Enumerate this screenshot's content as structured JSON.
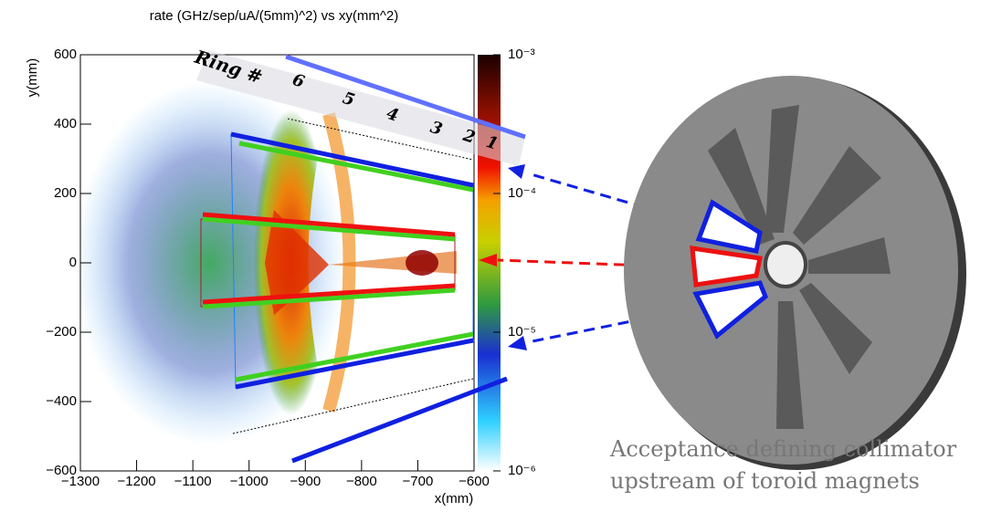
{
  "chart_data": {
    "type": "heatmap",
    "title": "rate (GHz/sep/uA/(5mm)^2) vs xy(mm^2)",
    "x_label": "x(mm)",
    "y_label": "y(mm)",
    "xlim": [
      -1300,
      -600
    ],
    "xticks": [
      {
        "value": -1300,
        "label": "−1300"
      },
      {
        "value": -1200,
        "label": "−1200"
      },
      {
        "value": -1100,
        "label": "−1100"
      },
      {
        "value": -1000,
        "label": "−1000"
      },
      {
        "value": -900,
        "label": "−900"
      },
      {
        "value": -800,
        "label": "−800"
      },
      {
        "value": -700,
        "label": "−700"
      },
      {
        "value": -600,
        "label": "−600"
      }
    ],
    "ylim": [
      -600,
      600
    ],
    "yticks": [
      {
        "value": -600,
        "label": "−600"
      },
      {
        "value": -400,
        "label": "−400"
      },
      {
        "value": -200,
        "label": "−200"
      },
      0,
      200,
      400,
      600
    ],
    "zscale": "log",
    "zlim": [
      1e-06,
      0.001
    ],
    "zticks": [
      {
        "value": 1e-06,
        "label": "10⁻⁶"
      },
      {
        "value": 1e-05,
        "label": "10⁻⁵"
      },
      {
        "value": 0.0001,
        "label": "10⁻⁴"
      },
      {
        "value": 0.001,
        "label": "10⁻³"
      }
    ]
  },
  "overlay": {
    "label": "Ring #",
    "rings": [
      "1",
      "2",
      "3",
      "4",
      "5",
      "6"
    ]
  },
  "annotation": [
    "Acceptance defining collimator",
    "upstream of toroid magnets"
  ]
}
